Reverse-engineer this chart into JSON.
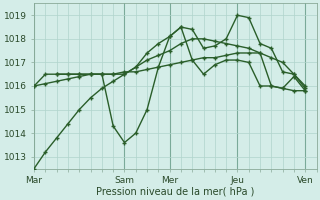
{
  "xlabel": "Pression niveau de la mer( hPa )",
  "background_color": "#d4ede8",
  "grid_color": "#b0d4cc",
  "line_color": "#2a5e2a",
  "ylim": [
    1012.5,
    1019.5
  ],
  "xlim": [
    0,
    25
  ],
  "day_labels": [
    "Mar",
    "Sam",
    "Mer",
    "Jeu",
    "Ven"
  ],
  "day_positions": [
    0,
    8,
    12,
    18,
    24
  ],
  "yticks": [
    1013,
    1014,
    1015,
    1016,
    1017,
    1018,
    1019
  ],
  "series": [
    {
      "x": [
        0,
        1,
        2,
        3,
        4,
        5,
        6,
        7,
        8,
        9,
        10,
        11,
        12,
        13,
        14,
        15,
        16,
        17,
        18,
        19,
        20,
        21,
        22,
        23,
        24
      ],
      "y": [
        1012.5,
        1013.2,
        1013.8,
        1014.4,
        1015.0,
        1015.5,
        1015.9,
        1016.2,
        1016.5,
        1016.8,
        1017.1,
        1017.3,
        1017.5,
        1017.8,
        1018.0,
        1018.0,
        1017.9,
        1017.8,
        1017.7,
        1017.6,
        1017.4,
        1017.2,
        1017.0,
        1016.5,
        1016.0
      ],
      "marker": "+",
      "linewidth": 1.0,
      "markersize": 3,
      "linestyle": "-"
    },
    {
      "x": [
        0,
        1,
        2,
        3,
        4,
        5,
        6,
        7,
        8,
        9,
        10,
        11,
        12,
        13,
        14,
        15,
        16,
        17,
        18,
        19,
        20,
        21,
        22,
        23,
        24
      ],
      "y": [
        1016.0,
        1016.1,
        1016.2,
        1016.3,
        1016.4,
        1016.5,
        1016.5,
        1016.5,
        1016.6,
        1016.6,
        1016.7,
        1016.8,
        1016.9,
        1017.0,
        1017.1,
        1017.2,
        1017.2,
        1017.3,
        1017.4,
        1017.4,
        1017.4,
        1016.0,
        1015.9,
        1015.8,
        1015.8
      ],
      "marker": "+",
      "linewidth": 1.0,
      "markersize": 3,
      "linestyle": "-"
    },
    {
      "x": [
        2,
        3,
        4,
        5,
        6,
        7,
        8,
        9,
        10,
        11,
        12,
        13,
        14,
        15,
        16,
        17,
        18,
        19,
        20,
        21,
        22,
        23,
        24
      ],
      "y": [
        1016.5,
        1016.5,
        1016.5,
        1016.5,
        1016.5,
        1014.3,
        1013.6,
        1014.0,
        1015.0,
        1016.8,
        1018.1,
        1018.5,
        1017.1,
        1016.5,
        1016.9,
        1017.1,
        1017.1,
        1017.0,
        1016.0,
        1016.0,
        1015.9,
        1016.4,
        1015.8
      ],
      "marker": "+",
      "linewidth": 1.0,
      "markersize": 3,
      "linestyle": "-"
    },
    {
      "x": [
        0,
        1,
        2,
        3,
        4,
        5,
        6,
        7,
        8,
        9,
        10,
        11,
        12,
        13,
        14,
        15,
        16,
        17,
        18,
        19,
        20,
        21,
        22,
        23,
        24
      ],
      "y": [
        1016.0,
        1016.5,
        1016.5,
        1016.5,
        1016.5,
        1016.5,
        1016.5,
        1016.5,
        1016.5,
        1016.8,
        1017.4,
        1017.8,
        1018.1,
        1018.5,
        1018.4,
        1017.6,
        1017.7,
        1018.0,
        1019.0,
        1018.9,
        1017.8,
        1017.6,
        1016.6,
        1016.5,
        1015.9
      ],
      "marker": "+",
      "linewidth": 1.0,
      "markersize": 3,
      "linestyle": "-"
    }
  ]
}
